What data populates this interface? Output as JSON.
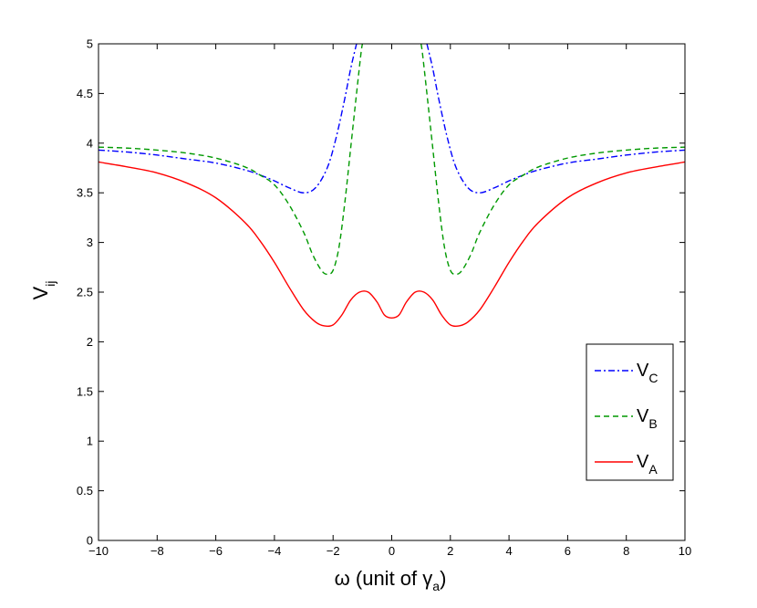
{
  "chart_data": {
    "type": "line",
    "xlabel": {
      "main": "ω (unit of γ",
      "sub": "a",
      "tail": ")"
    },
    "ylabel": {
      "main": "V",
      "sub": "ij"
    },
    "xlim": [
      -10,
      10
    ],
    "ylim": [
      0,
      5
    ],
    "xticks": [
      -10,
      -8,
      -6,
      -4,
      -2,
      0,
      2,
      4,
      6,
      8,
      10
    ],
    "xtick_labels": [
      "−10",
      "−8",
      "−6",
      "−4",
      "−2",
      "0",
      "2",
      "4",
      "6",
      "8",
      "10"
    ],
    "yticks": [
      0,
      0.5,
      1,
      1.5,
      2,
      2.5,
      3,
      3.5,
      4,
      4.5,
      5
    ],
    "ytick_labels": [
      "0",
      "0.5",
      "1",
      "1.5",
      "2",
      "2.5",
      "3",
      "3.5",
      "4",
      "4.5",
      "5"
    ],
    "grid": false,
    "legend_position": "lower-right",
    "series": [
      {
        "name": "V",
        "name_sub": "C",
        "color": "#0000ff",
        "style": "dashdot",
        "x": [
          -10,
          -9,
          -8,
          -7,
          -6,
          -5,
          -4.5,
          -4,
          -3.5,
          -3,
          -2.6,
          -2.2,
          -1.9,
          -1.6,
          -1.4,
          -1.2,
          1.2,
          1.4,
          1.6,
          1.9,
          2.2,
          2.6,
          3,
          3.5,
          4,
          4.5,
          5,
          6,
          7,
          8,
          9,
          10
        ],
        "y": [
          3.93,
          3.91,
          3.88,
          3.84,
          3.8,
          3.73,
          3.68,
          3.62,
          3.55,
          3.5,
          3.55,
          3.75,
          4.05,
          4.45,
          4.75,
          5,
          5,
          4.75,
          4.45,
          4.05,
          3.75,
          3.55,
          3.5,
          3.55,
          3.62,
          3.68,
          3.73,
          3.8,
          3.84,
          3.88,
          3.91,
          3.93
        ]
      },
      {
        "name": "V",
        "name_sub": "B",
        "color": "#009900",
        "style": "dashed",
        "x": [
          -10,
          -9,
          -8,
          -7,
          -6,
          -5,
          -4.5,
          -4,
          -3.5,
          -3,
          -2.7,
          -2.4,
          -2.2,
          -2,
          -1.8,
          -1.6,
          -1.4,
          -1.2,
          -1.05,
          -1,
          1,
          1.05,
          1.2,
          1.4,
          1.6,
          1.8,
          2,
          2.2,
          2.4,
          2.7,
          3,
          3.5,
          4,
          4.5,
          5,
          6,
          7,
          8,
          9,
          10
        ],
        "y": [
          3.96,
          3.95,
          3.93,
          3.9,
          3.85,
          3.76,
          3.68,
          3.58,
          3.38,
          3.1,
          2.88,
          2.72,
          2.68,
          2.72,
          2.95,
          3.4,
          3.95,
          4.5,
          4.9,
          5,
          5,
          4.9,
          4.5,
          3.95,
          3.4,
          2.95,
          2.72,
          2.68,
          2.72,
          2.88,
          3.1,
          3.38,
          3.58,
          3.68,
          3.76,
          3.85,
          3.9,
          3.93,
          3.95,
          3.96
        ]
      },
      {
        "name": "V",
        "name_sub": "A",
        "color": "#ff0000",
        "style": "solid",
        "x": [
          -10,
          -9,
          -8,
          -7,
          -6,
          -5,
          -4.5,
          -4,
          -3.5,
          -3,
          -2.6,
          -2.3,
          -2,
          -1.7,
          -1.4,
          -1.1,
          -0.8,
          -0.5,
          -0.25,
          0,
          0.25,
          0.5,
          0.8,
          1.1,
          1.4,
          1.7,
          2,
          2.3,
          2.6,
          3,
          3.5,
          4,
          4.5,
          5,
          6,
          7,
          8,
          9,
          10
        ],
        "y": [
          3.81,
          3.76,
          3.7,
          3.6,
          3.45,
          3.2,
          3.02,
          2.8,
          2.55,
          2.32,
          2.2,
          2.16,
          2.17,
          2.27,
          2.42,
          2.5,
          2.5,
          2.4,
          2.27,
          2.24,
          2.27,
          2.4,
          2.5,
          2.5,
          2.42,
          2.27,
          2.17,
          2.16,
          2.2,
          2.32,
          2.55,
          2.8,
          3.02,
          3.2,
          3.45,
          3.6,
          3.7,
          3.76,
          3.81
        ]
      }
    ]
  }
}
